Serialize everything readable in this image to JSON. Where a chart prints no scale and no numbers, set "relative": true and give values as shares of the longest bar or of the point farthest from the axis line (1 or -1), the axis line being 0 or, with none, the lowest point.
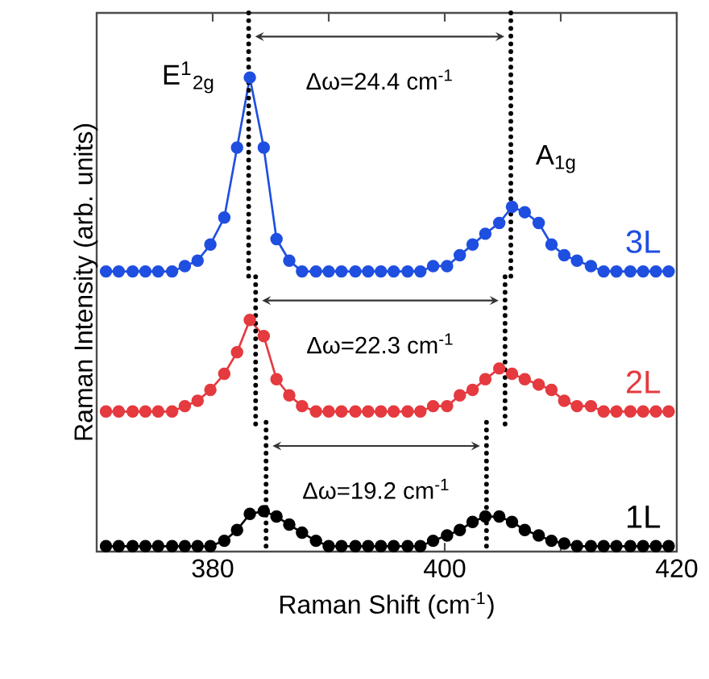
{
  "chart_data": {
    "type": "line",
    "relative": true,
    "xlabel": "Raman Shift (cm$^{-1}$)",
    "ylabel": "Raman Intensity (arb. units)",
    "xlim": [
      370,
      420
    ],
    "xticks": [
      380,
      {
        "value": 390,
        "label": null
      },
      400,
      {
        "value": 410,
        "label": null
      },
      420
    ],
    "grid": false,
    "marker": "circle",
    "line_style": "solid",
    "x": [
      370.8,
      371.9,
      373.1,
      374.2,
      375.3,
      376.5,
      377.6,
      378.7,
      379.8,
      381.0,
      382.1,
      383.2,
      384.4,
      385.5,
      386.6,
      387.7,
      388.9,
      390.0,
      391.1,
      392.3,
      393.4,
      394.5,
      395.6,
      396.8,
      397.9,
      399.0,
      400.2,
      401.3,
      402.4,
      403.5,
      404.7,
      405.8,
      406.9,
      408.1,
      409.2,
      410.3,
      411.4,
      412.6,
      413.7,
      414.8,
      416.0,
      417.1,
      418.2,
      419.3
    ],
    "series": [
      {
        "name": "3L",
        "color": "#1f4fe0",
        "values": [
          0.52,
          0.52,
          0.52,
          0.52,
          0.52,
          0.52,
          0.53,
          0.54,
          0.57,
          0.62,
          0.75,
          0.88,
          0.75,
          0.58,
          0.54,
          0.52,
          0.52,
          0.52,
          0.52,
          0.52,
          0.52,
          0.52,
          0.52,
          0.52,
          0.52,
          0.53,
          0.53,
          0.55,
          0.57,
          0.59,
          0.61,
          0.64,
          0.63,
          0.61,
          0.57,
          0.55,
          0.54,
          0.53,
          0.52,
          0.52,
          0.52,
          0.52,
          0.52,
          0.52
        ]
      },
      {
        "name": "2L",
        "color": "#e53a3f",
        "values": [
          0.26,
          0.26,
          0.26,
          0.26,
          0.26,
          0.26,
          0.27,
          0.28,
          0.3,
          0.33,
          0.37,
          0.43,
          0.4,
          0.32,
          0.29,
          0.27,
          0.26,
          0.26,
          0.26,
          0.26,
          0.26,
          0.26,
          0.26,
          0.26,
          0.26,
          0.27,
          0.27,
          0.29,
          0.3,
          0.32,
          0.34,
          0.33,
          0.32,
          0.31,
          0.3,
          0.28,
          0.27,
          0.27,
          0.26,
          0.26,
          0.26,
          0.26,
          0.26,
          0.26
        ]
      },
      {
        "name": "1L",
        "color": "#000000",
        "values": [
          0.01,
          0.01,
          0.01,
          0.01,
          0.01,
          0.01,
          0.01,
          0.01,
          0.01,
          0.02,
          0.04,
          0.07,
          0.075,
          0.065,
          0.05,
          0.035,
          0.02,
          0.01,
          0.01,
          0.01,
          0.01,
          0.01,
          0.01,
          0.01,
          0.01,
          0.02,
          0.03,
          0.04,
          0.055,
          0.065,
          0.065,
          0.055,
          0.04,
          0.03,
          0.02,
          0.015,
          0.01,
          0.01,
          0.01,
          0.01,
          0.01,
          0.01,
          0.01,
          0.01
        ]
      },
      {
        "type": "line",
        "color": "#000000",
        "line_style": "dotted",
        "marker": "none",
        "x": [
          383.1,
          383.1
        ],
        "values": [
          1.0,
          0.51
        ]
      },
      {
        "type": "line",
        "color": "#000000",
        "line_style": "dotted",
        "marker": "none",
        "x": [
          405.7,
          405.7
        ],
        "values": [
          1.0,
          0.51
        ]
      },
      {
        "type": "line",
        "color": "#000000",
        "line_style": "dotted",
        "marker": "none",
        "x": [
          383.7,
          383.7
        ],
        "values": [
          0.51,
          0.23
        ]
      },
      {
        "type": "line",
        "color": "#000000",
        "line_style": "dotted",
        "marker": "none",
        "x": [
          405.2,
          405.2
        ],
        "values": [
          0.51,
          0.23
        ]
      },
      {
        "type": "line",
        "color": "#000000",
        "line_style": "dotted",
        "marker": "none",
        "x": [
          384.6,
          384.6
        ],
        "values": [
          0.24,
          0.0
        ]
      },
      {
        "type": "line",
        "color": "#000000",
        "line_style": "dotted",
        "marker": "none",
        "x": [
          403.6,
          403.6
        ],
        "values": [
          0.24,
          0.0
        ]
      }
    ],
    "annotations": [
      "Δω=24.4 cm$^{-1}$",
      "Δω=22.3 cm$^{-1}$",
      "Δω=19.2 cm$^{-1}$",
      "E$^{1}$$_{2g}$",
      "A$_{1g}$"
    ]
  }
}
